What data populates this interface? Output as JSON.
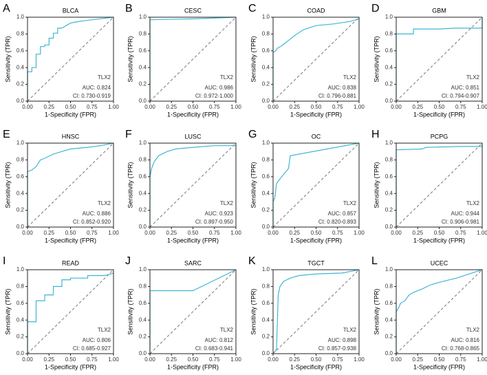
{
  "chart_data": [
    {
      "type": "line",
      "label": "A",
      "title": "BLCA",
      "xlabel": "1-Specificity (FPR)",
      "ylabel": "Sensitivity (TPR)",
      "xlim": [
        0,
        1
      ],
      "ylim": [
        0,
        1
      ],
      "xticks": [
        {
          "value": 0,
          "label": "0.00"
        },
        0.25,
        {
          "value": 0.5,
          "label": "0.50"
        },
        0.75,
        {
          "value": 1,
          "label": "1.00"
        }
      ],
      "yticks": [
        {
          "value": 0,
          "label": "0.0"
        },
        0.2,
        0.4,
        0.6,
        0.8,
        {
          "value": 1,
          "label": "1.0"
        }
      ],
      "x": [
        0,
        0,
        0.05,
        0.05,
        0.1,
        0.1,
        0.15,
        0.15,
        0.2,
        0.2,
        0.25,
        0.25,
        0.3,
        0.3,
        0.35,
        0.35,
        0.4,
        0.45,
        0.5,
        0.6,
        0.75,
        1
      ],
      "series": [
        {
          "name": "TLX2",
          "color": "#3fb6d3",
          "values": [
            0,
            0.35,
            0.35,
            0.4,
            0.4,
            0.56,
            0.56,
            0.65,
            0.65,
            0.67,
            0.67,
            0.75,
            0.75,
            0.81,
            0.81,
            0.87,
            0.87,
            0.9,
            0.93,
            0.95,
            0.97,
            1
          ]
        }
      ],
      "annotations": [
        "AUC: 0.824",
        "CI: 0.730-0.919"
      ]
    },
    {
      "type": "line",
      "label": "B",
      "title": "CESC",
      "xlabel": "1-Specificity (FPR)",
      "ylabel": "Sensitivity (TPR)",
      "xlim": [
        0,
        1
      ],
      "ylim": [
        0,
        1
      ],
      "xticks": [
        {
          "value": 0,
          "label": "0.00"
        },
        0.25,
        {
          "value": 0.5,
          "label": "0.50"
        },
        0.75,
        {
          "value": 1,
          "label": "1.00"
        }
      ],
      "yticks": [
        {
          "value": 0,
          "label": "0.0"
        },
        0.2,
        0.4,
        0.6,
        0.8,
        {
          "value": 1,
          "label": "1.0"
        }
      ],
      "x": [
        0,
        0,
        0.5,
        1
      ],
      "series": [
        {
          "name": "TLX2",
          "color": "#3fb6d3",
          "values": [
            0,
            0.97,
            0.98,
            1
          ]
        }
      ],
      "annotations": [
        "AUC: 0.986",
        "CI: 0.972-1.000"
      ]
    },
    {
      "type": "line",
      "label": "C",
      "title": "COAD",
      "xlabel": "1-Specificity (FPR)",
      "ylabel": "Sensitivity (TPR)",
      "xlim": [
        0,
        1
      ],
      "ylim": [
        0,
        1
      ],
      "xticks": [
        {
          "value": 0,
          "label": "0.00"
        },
        0.25,
        {
          "value": 0.5,
          "label": "0.50"
        },
        0.75,
        {
          "value": 1,
          "label": "1.00"
        }
      ],
      "yticks": [
        {
          "value": 0,
          "label": "0.0"
        },
        0.2,
        0.4,
        0.6,
        0.8,
        {
          "value": 1,
          "label": "1.0"
        }
      ],
      "x": [
        0,
        0,
        0.03,
        0.05,
        0.1,
        0.15,
        0.2,
        0.25,
        0.35,
        0.5,
        0.7,
        0.9,
        1,
        1
      ],
      "series": [
        {
          "name": "TLX2",
          "color": "#3fb6d3",
          "values": [
            0,
            0.58,
            0.6,
            0.63,
            0.66,
            0.7,
            0.74,
            0.78,
            0.85,
            0.9,
            0.92,
            0.95,
            0.98,
            1
          ]
        }
      ],
      "annotations": [
        "AUC: 0.838",
        "CI: 0.796-0.881"
      ]
    },
    {
      "type": "line",
      "label": "D",
      "title": "GBM",
      "xlabel": "1-Specificity (FPR)",
      "ylabel": "Sensitivity (TPR)",
      "xlim": [
        0,
        1
      ],
      "ylim": [
        0,
        1
      ],
      "xticks": [
        {
          "value": 0,
          "label": "0.00"
        },
        0.25,
        {
          "value": 0.5,
          "label": "0.50"
        },
        0.75,
        {
          "value": 1,
          "label": "1.00"
        }
      ],
      "yticks": [
        {
          "value": 0,
          "label": "0.0"
        },
        0.2,
        0.4,
        0.6,
        0.8,
        {
          "value": 1,
          "label": "1.0"
        }
      ],
      "x": [
        0,
        0,
        0.2,
        0.2,
        0.5,
        0.7,
        1,
        1
      ],
      "series": [
        {
          "name": "TLX2",
          "color": "#3fb6d3",
          "values": [
            0,
            0.8,
            0.8,
            0.86,
            0.86,
            0.87,
            0.87,
            1
          ]
        }
      ],
      "annotations": [
        "AUC: 0.851",
        "CI: 0.794-0.907"
      ]
    },
    {
      "type": "line",
      "label": "E",
      "title": "HNSC",
      "xlabel": "1-Specificity (FPR)",
      "ylabel": "Sensitivity (TPR)",
      "xlim": [
        0,
        1
      ],
      "ylim": [
        0,
        1
      ],
      "xticks": [
        {
          "value": 0,
          "label": "0.00"
        },
        0.25,
        {
          "value": 0.5,
          "label": "0.50"
        },
        0.75,
        {
          "value": 1,
          "label": "1.00"
        }
      ],
      "yticks": [
        {
          "value": 0,
          "label": "0.0"
        },
        0.2,
        0.4,
        0.6,
        0.8,
        {
          "value": 1,
          "label": "1.0"
        }
      ],
      "x": [
        0,
        0,
        0.05,
        0.1,
        0.15,
        0.2,
        0.3,
        0.4,
        0.5,
        0.7,
        0.85,
        1
      ],
      "series": [
        {
          "name": "TLX2",
          "color": "#3fb6d3",
          "values": [
            0,
            0.66,
            0.68,
            0.72,
            0.8,
            0.82,
            0.87,
            0.9,
            0.93,
            0.95,
            0.97,
            1
          ]
        }
      ],
      "annotations": [
        "AUC: 0.886",
        "CI: 0.852-0.920"
      ]
    },
    {
      "type": "line",
      "label": "F",
      "title": "LUSC",
      "xlabel": "1-Specificity (FPR)",
      "ylabel": "Sensitivity (TPR)",
      "xlim": [
        0,
        1
      ],
      "ylim": [
        0,
        1
      ],
      "xticks": [
        {
          "value": 0,
          "label": "0.00"
        },
        0.25,
        {
          "value": 0.5,
          "label": "0.50"
        },
        0.75,
        {
          "value": 1,
          "label": "1.00"
        }
      ],
      "yticks": [
        {
          "value": 0,
          "label": "0.0"
        },
        0.2,
        0.4,
        0.6,
        0.8,
        {
          "value": 1,
          "label": "1.0"
        }
      ],
      "x": [
        0,
        0,
        0.02,
        0.05,
        0.08,
        0.1,
        0.2,
        0.3,
        0.5,
        0.75,
        1,
        1
      ],
      "series": [
        {
          "name": "TLX2",
          "color": "#3fb6d3",
          "values": [
            0,
            0.6,
            0.7,
            0.78,
            0.82,
            0.85,
            0.9,
            0.93,
            0.95,
            0.97,
            0.97,
            1
          ]
        }
      ],
      "annotations": [
        "AUC: 0.923",
        "CI: 0.897-0.950"
      ]
    },
    {
      "type": "line",
      "label": "G",
      "title": "OC",
      "xlabel": "1-Specificity (FPR)",
      "ylabel": "Sensitivity (TPR)",
      "xlim": [
        0,
        1
      ],
      "ylim": [
        0,
        1
      ],
      "xticks": [
        {
          "value": 0,
          "label": "0.00"
        },
        0.25,
        {
          "value": 0.5,
          "label": "0.50"
        },
        0.75,
        {
          "value": 1,
          "label": "1.00"
        }
      ],
      "yticks": [
        {
          "value": 0,
          "label": "0.0"
        },
        0.2,
        0.4,
        0.6,
        0.8,
        {
          "value": 1,
          "label": "1.0"
        }
      ],
      "x": [
        0,
        0,
        0.02,
        0.04,
        0.1,
        0.18,
        0.2,
        1
      ],
      "series": [
        {
          "name": "TLX2",
          "color": "#3fb6d3",
          "values": [
            0,
            0.3,
            0.35,
            0.52,
            0.6,
            0.7,
            0.85,
            1
          ]
        }
      ],
      "annotations": [
        "AUC: 0.857",
        "CI: 0.820-0.893"
      ]
    },
    {
      "type": "line",
      "label": "H",
      "title": "PCPG",
      "xlabel": "1-Specificity (FPR)",
      "ylabel": "Sensitivity (TPR)",
      "xlim": [
        0,
        1
      ],
      "ylim": [
        0,
        1
      ],
      "xticks": [
        {
          "value": 0,
          "label": "0.00"
        },
        0.25,
        {
          "value": 0.5,
          "label": "0.50"
        },
        0.75,
        {
          "value": 1,
          "label": "1.00"
        }
      ],
      "yticks": [
        {
          "value": 0,
          "label": "0.0"
        },
        0.2,
        0.4,
        0.6,
        0.8,
        {
          "value": 1,
          "label": "1.0"
        }
      ],
      "x": [
        0,
        0,
        0.3,
        0.35,
        0.75,
        1,
        1
      ],
      "series": [
        {
          "name": "TLX2",
          "color": "#3fb6d3",
          "values": [
            0,
            0.92,
            0.93,
            0.95,
            0.96,
            0.96,
            1
          ]
        }
      ],
      "annotations": [
        "AUC: 0.944",
        "CI: 0.906-0.981"
      ]
    },
    {
      "type": "line",
      "label": "I",
      "title": "READ",
      "xlabel": "1-Specificity (FPR)",
      "ylabel": "Sensitivity (TPR)",
      "xlim": [
        0,
        1
      ],
      "ylim": [
        0,
        1
      ],
      "xticks": [
        {
          "value": 0,
          "label": "0.00"
        },
        0.25,
        {
          "value": 0.5,
          "label": "0.50"
        },
        0.75,
        {
          "value": 1,
          "label": "1.00"
        }
      ],
      "yticks": [
        {
          "value": 0,
          "label": "0.0"
        },
        0.2,
        0.4,
        0.6,
        0.8,
        {
          "value": 1,
          "label": "1.0"
        }
      ],
      "x": [
        0,
        0,
        0.1,
        0.1,
        0.2,
        0.2,
        0.3,
        0.3,
        0.4,
        0.4,
        0.5,
        0.5,
        0.7,
        0.7,
        0.9,
        1
      ],
      "series": [
        {
          "name": "TLX2",
          "color": "#3fb6d3",
          "values": [
            0,
            0.38,
            0.38,
            0.63,
            0.63,
            0.7,
            0.7,
            0.8,
            0.8,
            0.88,
            0.88,
            0.9,
            0.9,
            0.93,
            0.93,
            0.96
          ]
        }
      ],
      "annotations": [
        "AUC: 0.806",
        "CI: 0.685-0.927"
      ]
    },
    {
      "type": "line",
      "label": "J",
      "title": "SARC",
      "xlabel": "1-Specificity (FPR)",
      "ylabel": "Sensitivity (TPR)",
      "xlim": [
        0,
        1
      ],
      "ylim": [
        0,
        1
      ],
      "xticks": [
        {
          "value": 0,
          "label": "0.00"
        },
        0.25,
        {
          "value": 0.5,
          "label": "0.50"
        },
        0.75,
        {
          "value": 1,
          "label": "1.00"
        }
      ],
      "yticks": [
        {
          "value": 0,
          "label": "0.0"
        },
        0.2,
        0.4,
        0.6,
        0.8,
        {
          "value": 1,
          "label": "1.0"
        }
      ],
      "x": [
        0,
        0,
        0.5,
        1
      ],
      "series": [
        {
          "name": "TLX2",
          "color": "#3fb6d3",
          "values": [
            0,
            0.75,
            0.75,
            1
          ]
        }
      ],
      "annotations": [
        "AUC: 0.812",
        "CI: 0.683-0.941"
      ]
    },
    {
      "type": "line",
      "label": "K",
      "title": "TGCT",
      "xlabel": "1-Specificity (FPR)",
      "ylabel": "Sensitivity (TPR)",
      "xlim": [
        0,
        1
      ],
      "ylim": [
        0,
        1
      ],
      "xticks": [
        {
          "value": 0,
          "label": "0.00"
        },
        0.25,
        {
          "value": 0.5,
          "label": "0.50"
        },
        0.75,
        {
          "value": 1,
          "label": "1.00"
        }
      ],
      "yticks": [
        {
          "value": 0,
          "label": "0.0"
        },
        0.2,
        0.4,
        0.6,
        0.8,
        {
          "value": 1,
          "label": "1.0"
        }
      ],
      "x": [
        0,
        0.04,
        0.05,
        0.06,
        0.08,
        0.12,
        0.2,
        0.3,
        0.5,
        0.8,
        1
      ],
      "series": [
        {
          "name": "TLX2",
          "color": "#3fb6d3",
          "values": [
            0,
            0.05,
            0.4,
            0.7,
            0.8,
            0.86,
            0.9,
            0.93,
            0.95,
            0.96,
            1
          ]
        }
      ],
      "annotations": [
        "AUC: 0.898",
        "CI: 0.857-0.938"
      ]
    },
    {
      "type": "line",
      "label": "L",
      "title": "UCEC",
      "xlabel": "1-Specificity (FPR)",
      "ylabel": "Sensitivity (TPR)",
      "xlim": [
        0,
        1
      ],
      "ylim": [
        0,
        1
      ],
      "xticks": [
        {
          "value": 0,
          "label": "0.00"
        },
        0.25,
        {
          "value": 0.5,
          "label": "0.50"
        },
        0.75,
        {
          "value": 1,
          "label": "1.00"
        }
      ],
      "yticks": [
        {
          "value": 0,
          "label": "0.0"
        },
        0.2,
        0.4,
        0.6,
        0.8,
        {
          "value": 1,
          "label": "1.0"
        }
      ],
      "x": [
        0,
        0,
        0.03,
        0.05,
        0.1,
        0.15,
        0.2,
        0.3,
        0.4,
        0.5,
        0.7,
        0.85,
        1
      ],
      "series": [
        {
          "name": "TLX2",
          "color": "#3fb6d3",
          "values": [
            0,
            0.5,
            0.55,
            0.6,
            0.63,
            0.7,
            0.73,
            0.77,
            0.82,
            0.85,
            0.9,
            0.95,
            1
          ]
        }
      ],
      "annotations": [
        "AUC: 0.816",
        "CI: 0.768-0.865"
      ]
    }
  ]
}
